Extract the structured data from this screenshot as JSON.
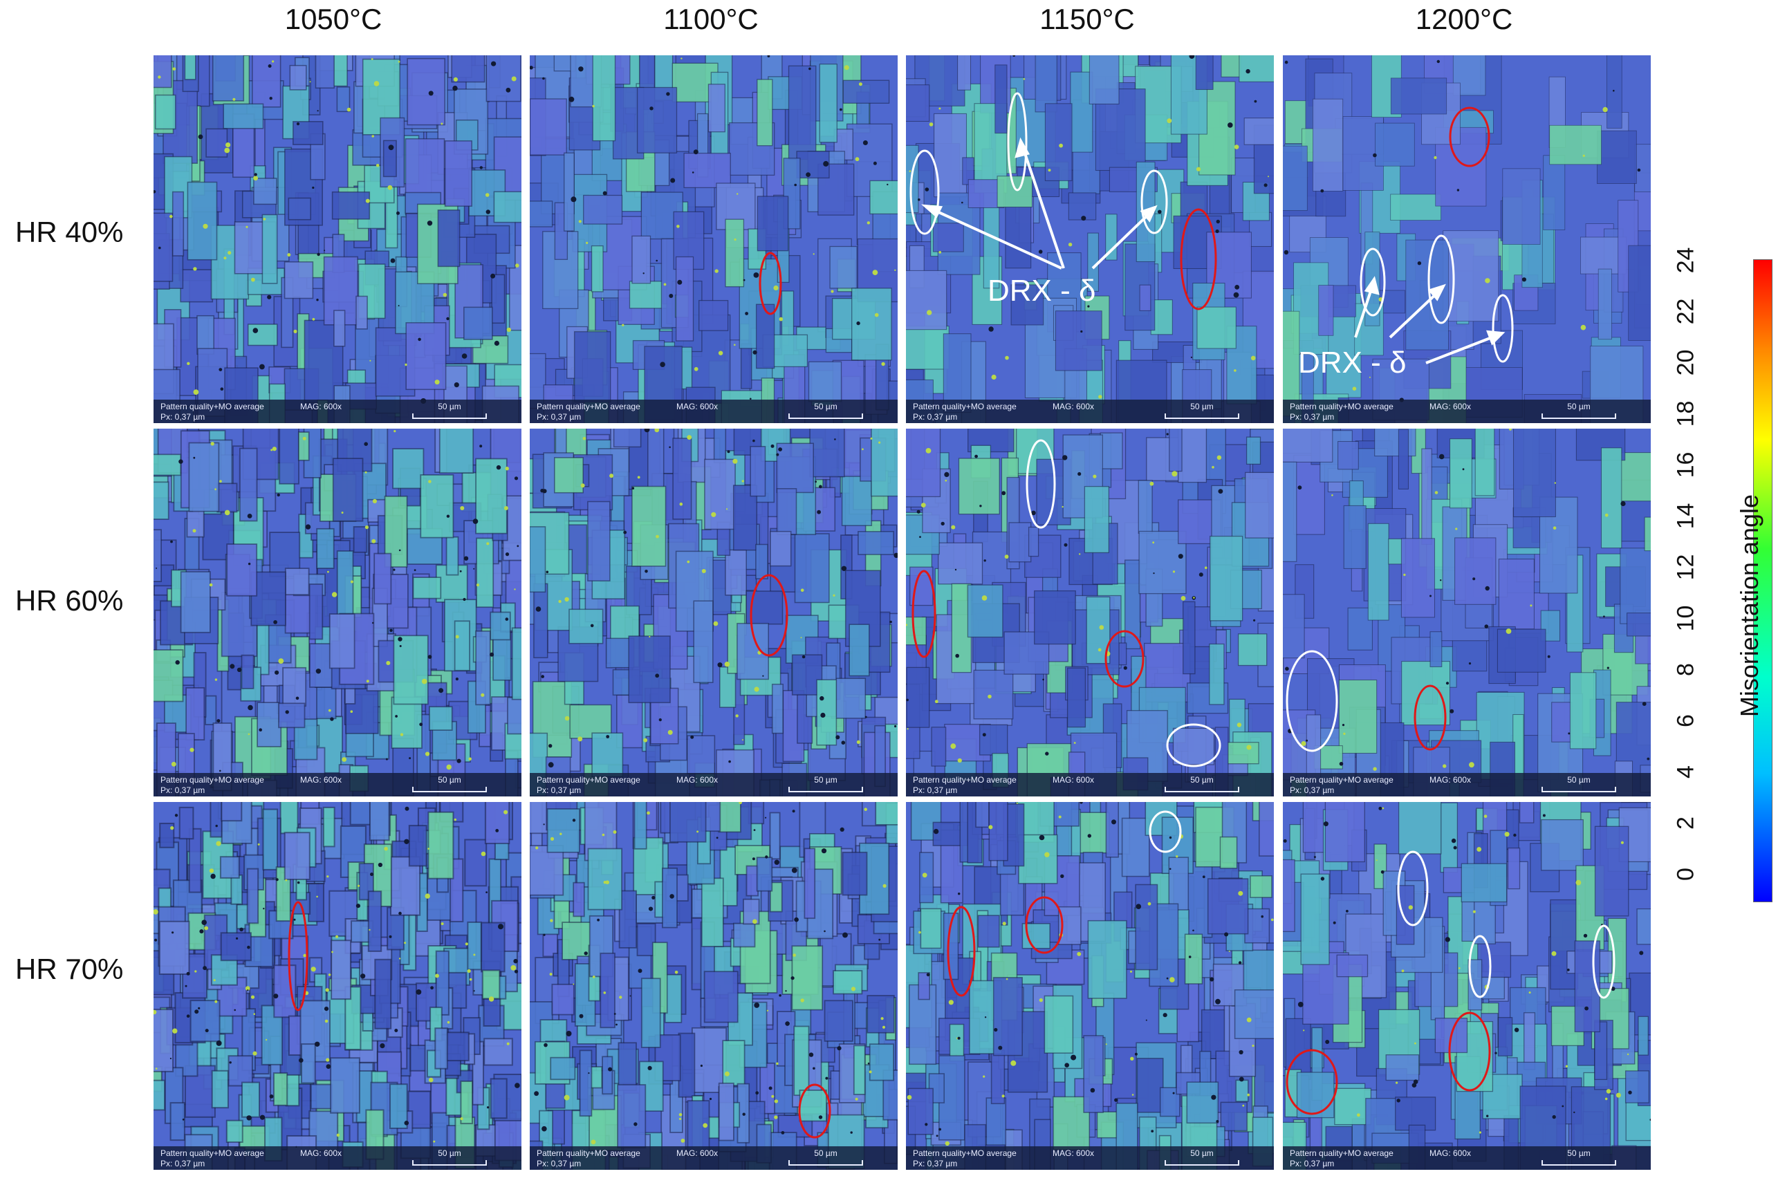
{
  "columns": [
    "1050°C",
    "1100°C",
    "1150°C",
    "1200°C"
  ],
  "rows": [
    "HR 40%",
    "HR 60%",
    "HR 70%"
  ],
  "panel_info": {
    "line1": "Pattern quality+MO average",
    "mag": "MAG: 600x",
    "line2": "Px: 0,37 µm",
    "scale": "50 µm"
  },
  "annotations": {
    "drx_label": "DRX - δ"
  },
  "colorbar": {
    "title": "Misorientation angle",
    "ticks": [
      "0",
      "2",
      "4",
      "6",
      "8",
      "10",
      "12",
      "14",
      "16",
      "18",
      "20",
      "22",
      "24"
    ],
    "gradient_colors": [
      "#0000ff",
      "#00bfff",
      "#00ffcc",
      "#33ff33",
      "#ffff00",
      "#ff8800",
      "#ff0000"
    ]
  },
  "colors": {
    "map_base": "#4f68cf",
    "red_marker": "#e01818",
    "white_marker": "#ffffff"
  }
}
